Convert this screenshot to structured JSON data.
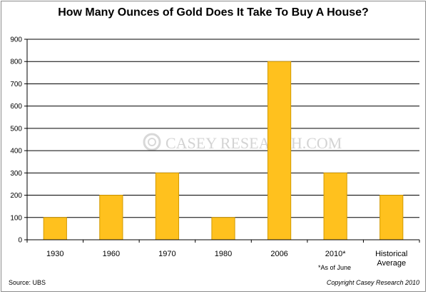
{
  "chart_data": {
    "type": "bar",
    "title": "How Many Ounces of Gold Does It Take To Buy A House?",
    "categories": [
      "1930",
      "1960",
      "1970",
      "1980",
      "2006",
      "2010*",
      "Historical Average"
    ],
    "category_lines": [
      [
        "1930"
      ],
      [
        "1960"
      ],
      [
        "1970"
      ],
      [
        "1980"
      ],
      [
        "2006"
      ],
      [
        "2010*"
      ],
      [
        "Historical",
        "Average"
      ]
    ],
    "values": [
      100,
      200,
      300,
      100,
      800,
      300,
      200
    ],
    "ylim": [
      0,
      900
    ],
    "yticks": [
      0,
      100,
      200,
      300,
      400,
      500,
      600,
      700,
      800,
      900
    ],
    "grid": true,
    "bar_color": "#FFC11E",
    "bar_edge_color": "#D39A00",
    "annotation": "*As of June"
  },
  "watermark": {
    "brand_text": "CASEY RESEARCH.COM"
  },
  "footer": {
    "source": "Source: UBS",
    "copyright": "Copyright Casey Research 2010"
  }
}
